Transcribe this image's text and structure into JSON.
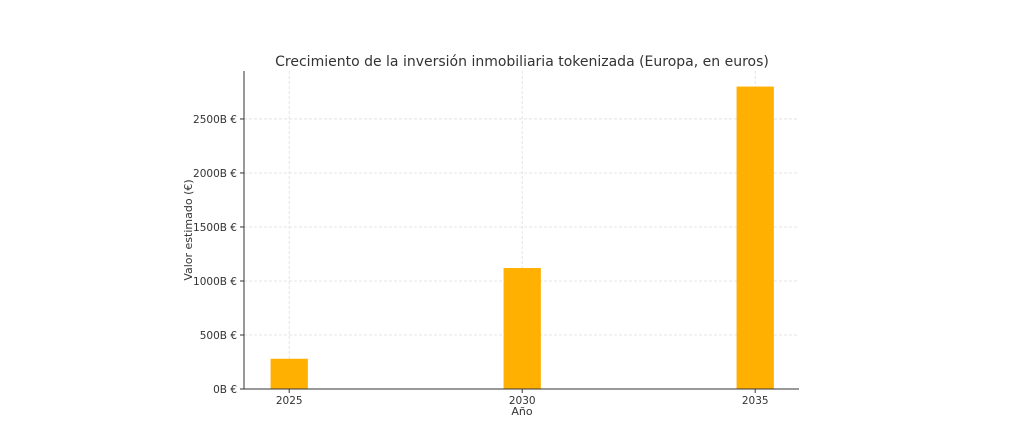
{
  "chart_data": {
    "type": "bar",
    "title": "Crecimiento de la inversión inmobiliaria tokenizada (Europa, en euros)",
    "xlabel": "Año",
    "ylabel": "Valor estimado (€)",
    "categories": [
      "2025",
      "2030",
      "2035"
    ],
    "x": [
      2025,
      2030,
      2035
    ],
    "values": [
      280,
      1120,
      2800
    ],
    "value_unit": "B €",
    "yticks": [
      0,
      500,
      1000,
      1500,
      2000,
      2500
    ],
    "ytick_labels": [
      "0B €",
      "500B €",
      "1000B €",
      "1500B €",
      "2000B €",
      "2500B €"
    ],
    "xlim": [
      2024.03,
      2035.94
    ],
    "ylim": [
      0,
      2944
    ],
    "bar_width_years": 0.8,
    "grid": true,
    "bar_color": "#FFB000"
  }
}
